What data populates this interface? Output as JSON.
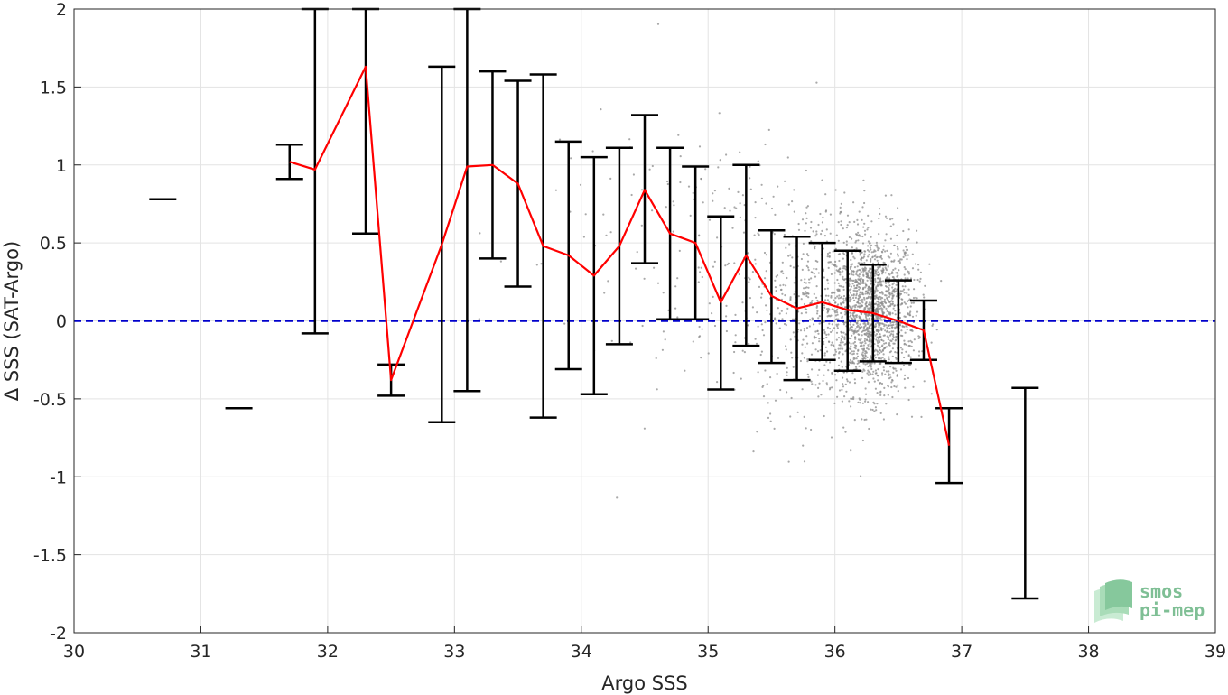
{
  "chart_data": {
    "type": "scatter",
    "xlabel": "Argo SSS",
    "ylabel": "Δ SSS (SAT-Argo)",
    "xlim": [
      30,
      39
    ],
    "ylim": [
      -2,
      2
    ],
    "xticks": [
      "30",
      "31",
      "32",
      "33",
      "34",
      "35",
      "36",
      "37",
      "38",
      "39"
    ],
    "yticks": [
      "-2",
      "-1.5",
      "-1",
      "-0.5",
      "0",
      "0.5",
      "1",
      "1.5",
      "2"
    ],
    "grid": true,
    "zero_line": {
      "y": 0,
      "color": "#0000cc",
      "style": "dashed"
    },
    "series": [
      {
        "kind": "mean_line",
        "color": "#ff0000",
        "x": [
          31.7,
          31.9,
          32.3,
          32.5,
          32.9,
          33.1,
          33.3,
          33.5,
          33.7,
          33.9,
          34.1,
          34.3,
          34.5,
          34.7,
          34.9,
          35.1,
          35.3,
          35.5,
          35.7,
          35.9,
          36.1,
          36.3,
          36.5,
          36.7,
          36.9
        ],
        "y": [
          1.02,
          0.97,
          1.63,
          -0.38,
          0.49,
          0.99,
          1.0,
          0.88,
          0.48,
          0.42,
          0.29,
          0.48,
          0.84,
          0.56,
          0.5,
          0.12,
          0.42,
          0.16,
          0.08,
          0.12,
          0.07,
          0.05,
          0.0,
          -0.06,
          -0.8
        ]
      },
      {
        "kind": "error_bars",
        "color": "#000000",
        "bars": [
          {
            "x": 30.7,
            "lo": 0.78,
            "hi": 0.78
          },
          {
            "x": 31.3,
            "lo": -0.56,
            "hi": -0.56
          },
          {
            "x": 31.7,
            "lo": 0.91,
            "hi": 1.13
          },
          {
            "x": 31.9,
            "lo": -0.08,
            "hi": 2.0
          },
          {
            "x": 32.3,
            "lo": 0.56,
            "hi": 2.0
          },
          {
            "x": 32.5,
            "lo": -0.48,
            "hi": -0.28
          },
          {
            "x": 32.9,
            "lo": -0.65,
            "hi": 1.63
          },
          {
            "x": 33.1,
            "lo": -0.45,
            "hi": 2.0
          },
          {
            "x": 33.3,
            "lo": 0.4,
            "hi": 1.6
          },
          {
            "x": 33.5,
            "lo": 0.22,
            "hi": 1.54
          },
          {
            "x": 33.7,
            "lo": -0.62,
            "hi": 1.58
          },
          {
            "x": 33.9,
            "lo": -0.31,
            "hi": 1.15
          },
          {
            "x": 34.1,
            "lo": -0.47,
            "hi": 1.05
          },
          {
            "x": 34.3,
            "lo": -0.15,
            "hi": 1.11
          },
          {
            "x": 34.5,
            "lo": 0.37,
            "hi": 1.32
          },
          {
            "x": 34.7,
            "lo": 0.01,
            "hi": 1.11
          },
          {
            "x": 34.9,
            "lo": 0.01,
            "hi": 0.99
          },
          {
            "x": 35.1,
            "lo": -0.44,
            "hi": 0.67
          },
          {
            "x": 35.3,
            "lo": -0.16,
            "hi": 1.0
          },
          {
            "x": 35.5,
            "lo": -0.27,
            "hi": 0.58
          },
          {
            "x": 35.7,
            "lo": -0.38,
            "hi": 0.54
          },
          {
            "x": 35.9,
            "lo": -0.25,
            "hi": 0.5
          },
          {
            "x": 36.1,
            "lo": -0.32,
            "hi": 0.45
          },
          {
            "x": 36.3,
            "lo": -0.26,
            "hi": 0.36
          },
          {
            "x": 36.5,
            "lo": -0.27,
            "hi": 0.26
          },
          {
            "x": 36.7,
            "lo": -0.25,
            "hi": 0.13
          },
          {
            "x": 36.9,
            "lo": -1.04,
            "hi": -0.56
          },
          {
            "x": 37.5,
            "lo": -1.78,
            "hi": -0.43
          }
        ]
      },
      {
        "kind": "scatter_cloud",
        "color": "#8c8c8c",
        "clusters": [
          {
            "x_mean": 36.3,
            "x_sd": 0.17,
            "y_mean": 0.05,
            "y_sd": 0.26,
            "n": 1500
          },
          {
            "x_mean": 35.9,
            "x_sd": 0.25,
            "y_mean": 0.12,
            "y_sd": 0.34,
            "n": 500
          },
          {
            "x_mean": 35.3,
            "x_sd": 0.35,
            "y_mean": 0.3,
            "y_sd": 0.45,
            "n": 160
          },
          {
            "x_mean": 34.4,
            "x_sd": 0.6,
            "y_mean": 0.5,
            "y_sd": 0.55,
            "n": 70
          }
        ]
      }
    ]
  },
  "logo": {
    "line1": "smos",
    "line2": "pi-mep"
  }
}
